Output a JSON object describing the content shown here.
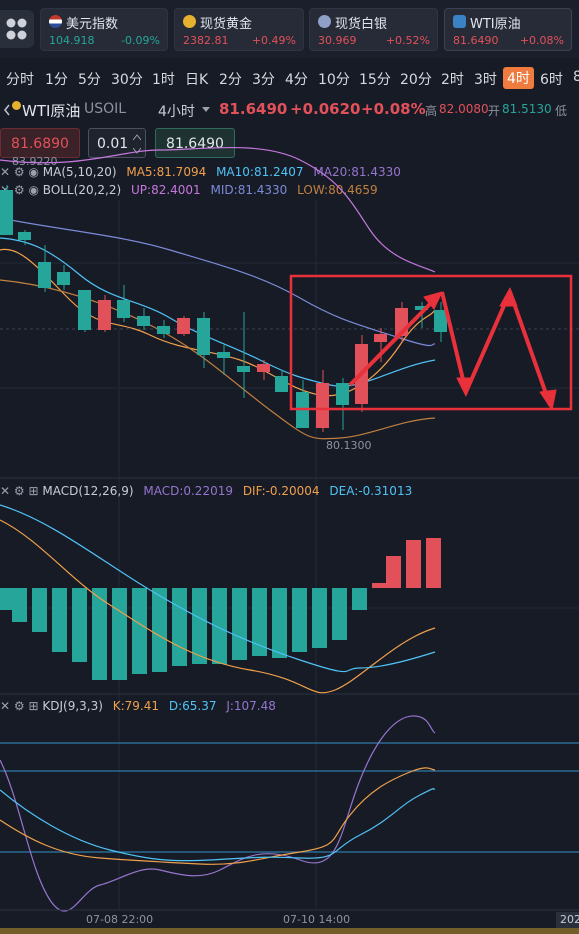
{
  "tickers": [
    {
      "name": "美元指数",
      "price": "104.918",
      "change": "-0.09%",
      "icon": "us-flag-icon",
      "price_color": "#26a69a",
      "change_color": "#26a69a"
    },
    {
      "name": "现货黄金",
      "price": "2382.81",
      "change": "+0.49%",
      "icon": "gold-coin-icon",
      "price_color": "#e2515a",
      "change_color": "#e2515a"
    },
    {
      "name": "现货白银",
      "price": "30.969",
      "change": "+0.52%",
      "icon": "silver-coin-icon",
      "price_color": "#e2515a",
      "change_color": "#e2515a"
    },
    {
      "name": "WTI原油",
      "price": "81.6490",
      "change": "+0.08%",
      "icon": "oil-icon",
      "price_color": "#e2515a",
      "change_color": "#e2515a"
    }
  ],
  "periods": [
    "分时",
    "1分",
    "5分",
    "30分",
    "1时",
    "日K",
    "2分",
    "3分",
    "4分",
    "10分",
    "15分",
    "20分",
    "2时",
    "3时",
    "4时",
    "6时",
    "8"
  ],
  "active_period": "4时",
  "symbol": {
    "name": "WTI原油",
    "code": "USOIL",
    "interval": "4小时",
    "price": "81.6490",
    "change": "+0.0620",
    "change_pct": "+0.08%",
    "high_label": "高",
    "high": "82.0080",
    "open_label": "开",
    "open": "81.5130",
    "low_label": "低"
  },
  "order": {
    "sell_price": "81.6890",
    "lot": "0.01",
    "buy_price": "81.6490"
  },
  "ma": {
    "label": "MA(5,10,20)",
    "ma5": "MA5:81.7094",
    "ma10": "MA10:81.2407",
    "ma20": "MA20:81.4330"
  },
  "boll": {
    "label": "BOLL(20,2,2)",
    "up": "UP:82.4001",
    "mid": "MID:81.4330",
    "low": "LOW:80.4659"
  },
  "macd": {
    "label": "MACD(12,26,9)",
    "macd": "MACD:0.22019",
    "dif": "DIF:-0.20004",
    "dea": "DEA:-0.31013"
  },
  "kdj": {
    "label": "KDJ(9,3,3)",
    "k": "K:79.41",
    "d": "D:65.37",
    "j": "J:107.48"
  },
  "price_labels": {
    "max": "83.9220",
    "min": "80.1300"
  },
  "time_axis": [
    "07-08 22:00",
    "07-10 14:00",
    "202"
  ],
  "colors": {
    "up": "#e2515a",
    "down": "#26a69a",
    "ma5": "#f0a04b",
    "ma10": "#4fc3f7",
    "ma20": "#9575cd",
    "accent": "#f07b3f",
    "annotation": "#e8313a"
  }
}
